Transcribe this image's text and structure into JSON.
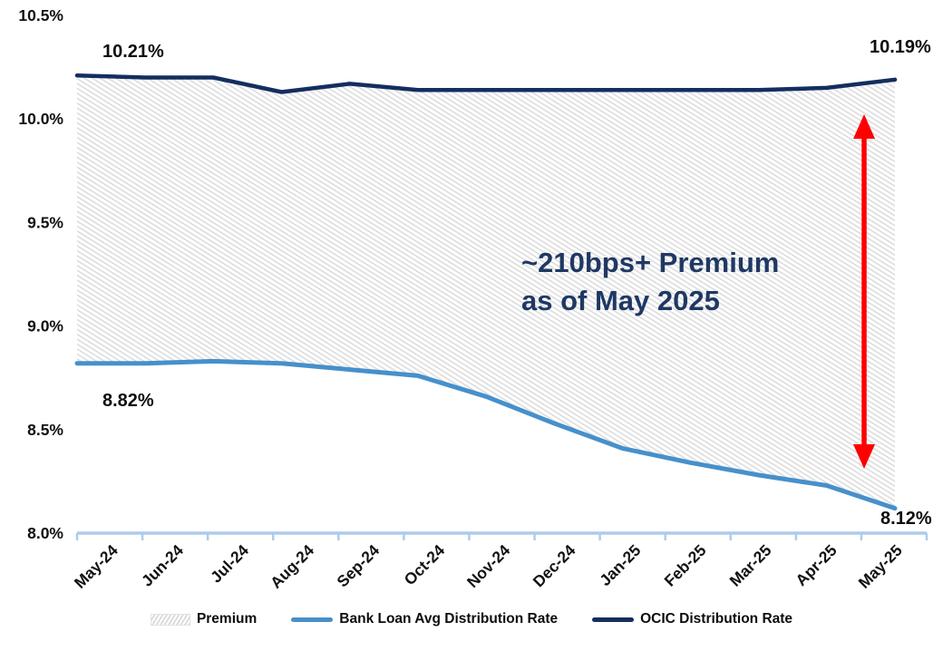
{
  "chart_data": {
    "type": "area",
    "title": "",
    "xlabel": "",
    "ylabel": "",
    "categories": [
      "May-24",
      "Jun-24",
      "Jul-24",
      "Aug-24",
      "Sep-24",
      "Oct-24",
      "Nov-24",
      "Dec-24",
      "Jan-25",
      "Feb-25",
      "Mar-25",
      "Apr-25",
      "May-25"
    ],
    "series": [
      {
        "name": "Bank Loan Avg Distribution Rate",
        "color": "#4690CB",
        "values": [
          8.82,
          8.82,
          8.83,
          8.82,
          8.79,
          8.76,
          8.66,
          8.53,
          8.41,
          8.34,
          8.28,
          8.23,
          8.12
        ]
      },
      {
        "name": "OCIC Distribution Rate",
        "color": "#132E5F",
        "values": [
          10.21,
          10.2,
          10.2,
          10.13,
          10.17,
          10.14,
          10.14,
          10.14,
          10.14,
          10.14,
          10.14,
          10.15,
          10.19
        ]
      }
    ],
    "premium_fill": "hatched area between the two series",
    "ylim": [
      8.0,
      10.5
    ],
    "ytick_labels": [
      "10.5%",
      "10.0%",
      "9.5%",
      "9.0%",
      "8.5%",
      "8.0%"
    ],
    "grid": false,
    "legend_position": "bottom",
    "axis_color": "#ADCCEC",
    "hatch_color": "#DCDCDC"
  },
  "point_labels": {
    "ocic_start": "10.21%",
    "ocic_end": "10.19%",
    "bank_start": "8.82%",
    "bank_end": "8.12%"
  },
  "annotation": {
    "line1": "~210bps+ Premium",
    "line2": "as of May 2025",
    "color": "#1F3864",
    "arrow_color": "#FE0000"
  },
  "legend": [
    {
      "label": "Premium",
      "swatch": "hatched-rect"
    },
    {
      "label": "Bank Loan Avg Distribution Rate",
      "swatch": "line",
      "color": "#4690CB"
    },
    {
      "label": "OCIC Distribution Rate",
      "swatch": "line",
      "color": "#132E5F"
    }
  ]
}
